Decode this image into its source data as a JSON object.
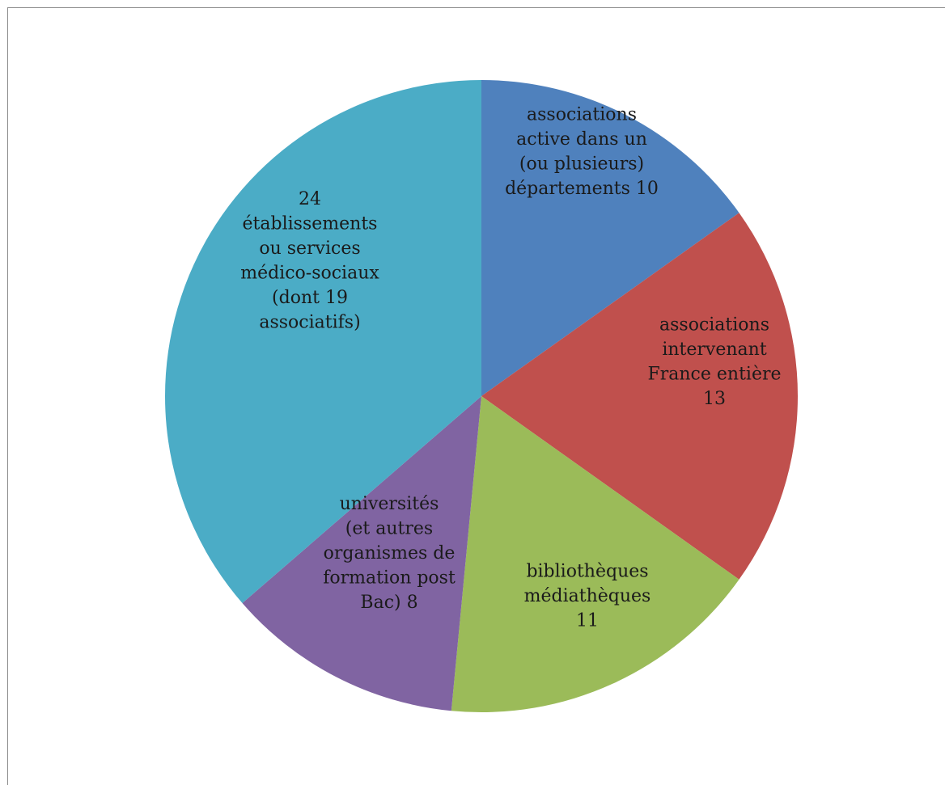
{
  "chart_data": {
    "type": "pie",
    "title": "",
    "slices": [
      {
        "label_lines": [
          "associations",
          "active dans un",
          "(ou plusieurs)",
          "départements 10"
        ],
        "value": 10,
        "color": "#4F81BD"
      },
      {
        "label_lines": [
          "associations",
          "intervenant",
          "France entière",
          "13"
        ],
        "value": 13,
        "color": "#C0504D"
      },
      {
        "label_lines": [
          "bibliothèques",
          "médiathèques",
          "11"
        ],
        "value": 11,
        "color": "#9BBB59"
      },
      {
        "label_lines": [
          "universités",
          "(et autres",
          "organismes de",
          "formation post",
          "Bac) 8"
        ],
        "value": 8,
        "color": "#8064A2"
      },
      {
        "label_lines": [
          "24",
          "établissements",
          "ou services",
          "médico-sociaux",
          "(dont 19",
          "associatifs)"
        ],
        "value": 24,
        "color": "#4BACC6"
      }
    ],
    "legend": "none"
  }
}
